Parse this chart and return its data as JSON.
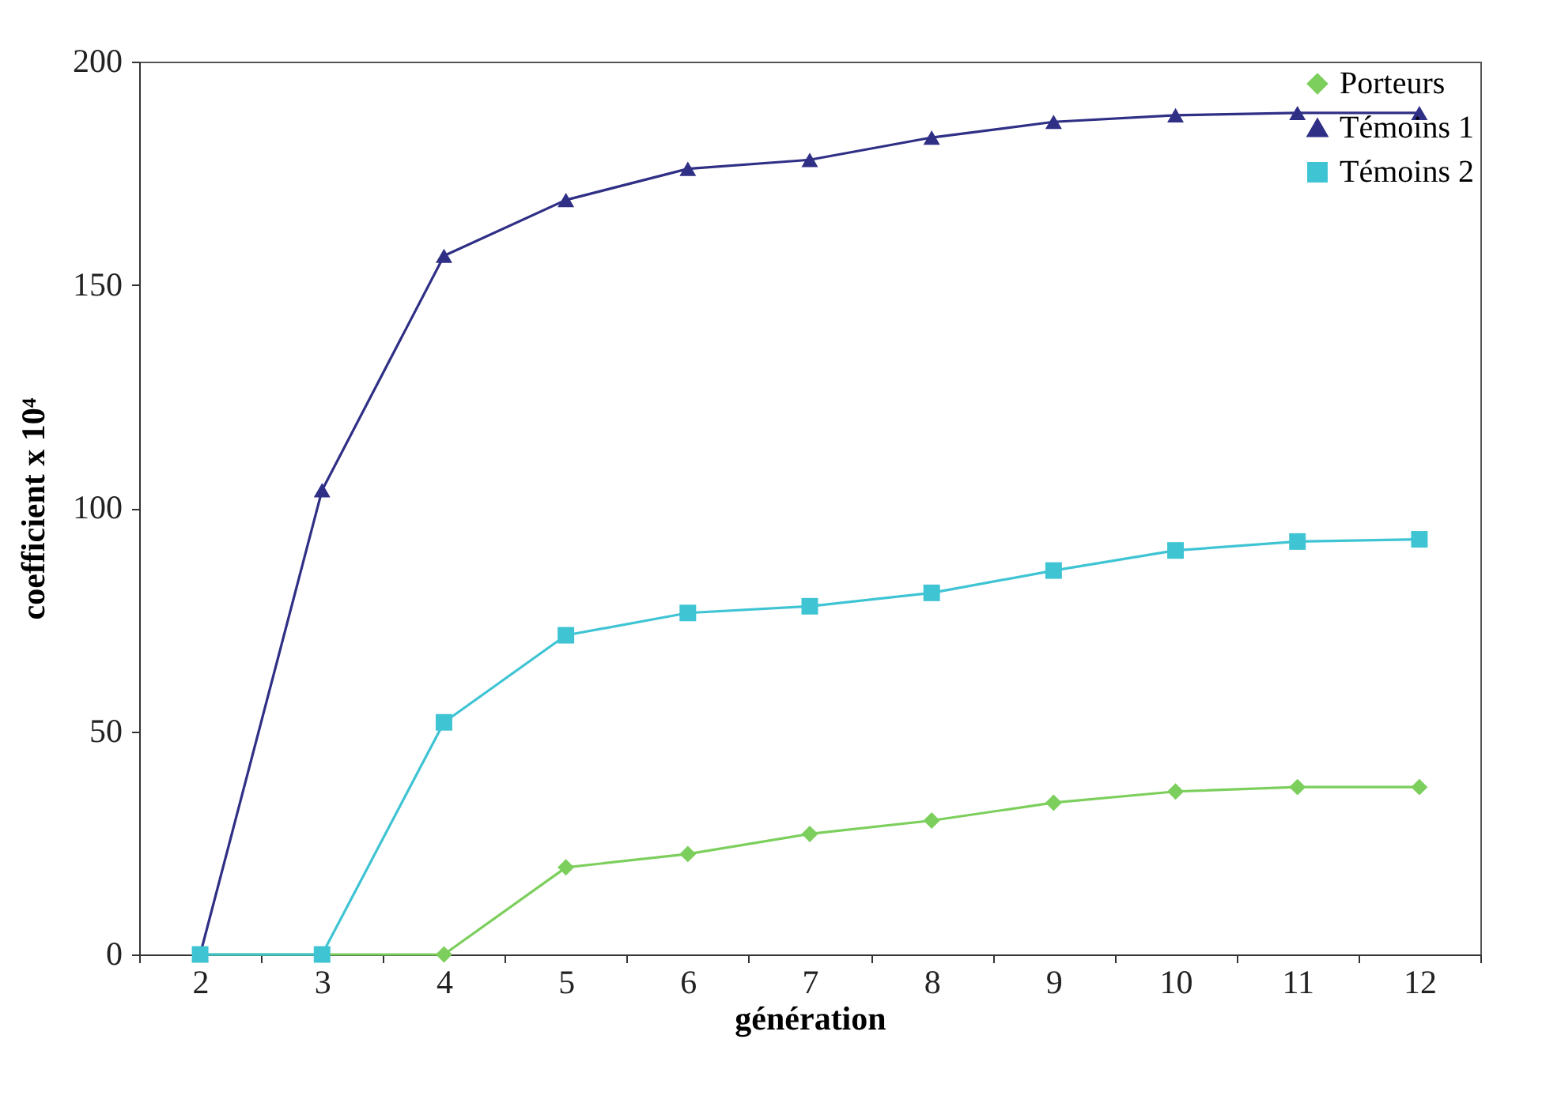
{
  "chart_data": {
    "type": "line",
    "xlabel": "génération",
    "ylabel": "coefficient x 10⁴",
    "categories": [
      "2",
      "3",
      "4",
      "5",
      "6",
      "7",
      "8",
      "9",
      "10",
      "11",
      "12"
    ],
    "series": [
      {
        "name": "Porteurs",
        "color": "#7ccf5c",
        "marker": "diamond",
        "values": [
          0,
          0,
          0,
          19.5,
          22.5,
          27,
          30,
          34,
          36.5,
          37.5,
          37.5
        ]
      },
      {
        "name": "Témoins 1",
        "color": "#2f2f86",
        "marker": "triangle",
        "values": [
          0,
          104,
          156.5,
          169,
          176,
          178,
          183,
          186.5,
          188,
          188.5,
          188.5
        ]
      },
      {
        "name": "Témoins 2",
        "color": "#3fc4d4",
        "marker": "square",
        "values": [
          0,
          0,
          52,
          71.5,
          76.5,
          78,
          81,
          86,
          90.5,
          92.5,
          93
        ]
      }
    ],
    "ylim": [
      0,
      200
    ],
    "yticks": [
      0,
      50,
      100,
      150,
      200
    ],
    "grid": false,
    "legend": "top right",
    "line_style": "solid"
  }
}
